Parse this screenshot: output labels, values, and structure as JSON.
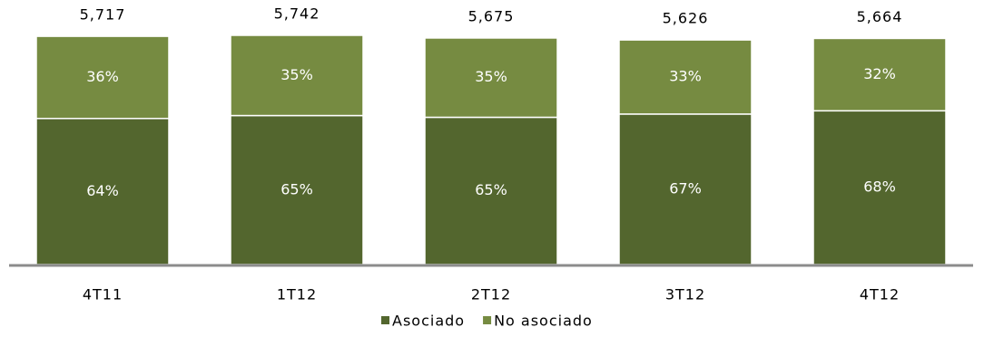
{
  "chart_data": {
    "type": "stacked-bar",
    "categories": [
      "4T11",
      "1T12",
      "2T12",
      "3T12",
      "4T12"
    ],
    "series": [
      {
        "name": "Asociado",
        "color": "#53662e",
        "values": [
          64,
          65,
          65,
          67,
          68
        ],
        "value_labels": [
          "64%",
          "65%",
          "65%",
          "67%",
          "68%"
        ]
      },
      {
        "name": "No asociado",
        "color": "#768b41",
        "values": [
          36,
          35,
          35,
          33,
          32
        ],
        "value_labels": [
          "36%",
          "35%",
          "35%",
          "33%",
          "32%"
        ]
      }
    ],
    "totals": {
      "values": [
        5717,
        5742,
        5675,
        5626,
        5664
      ],
      "value_labels": [
        "5,717",
        "5,742",
        "5,675",
        "5,626",
        "5,664"
      ]
    }
  }
}
